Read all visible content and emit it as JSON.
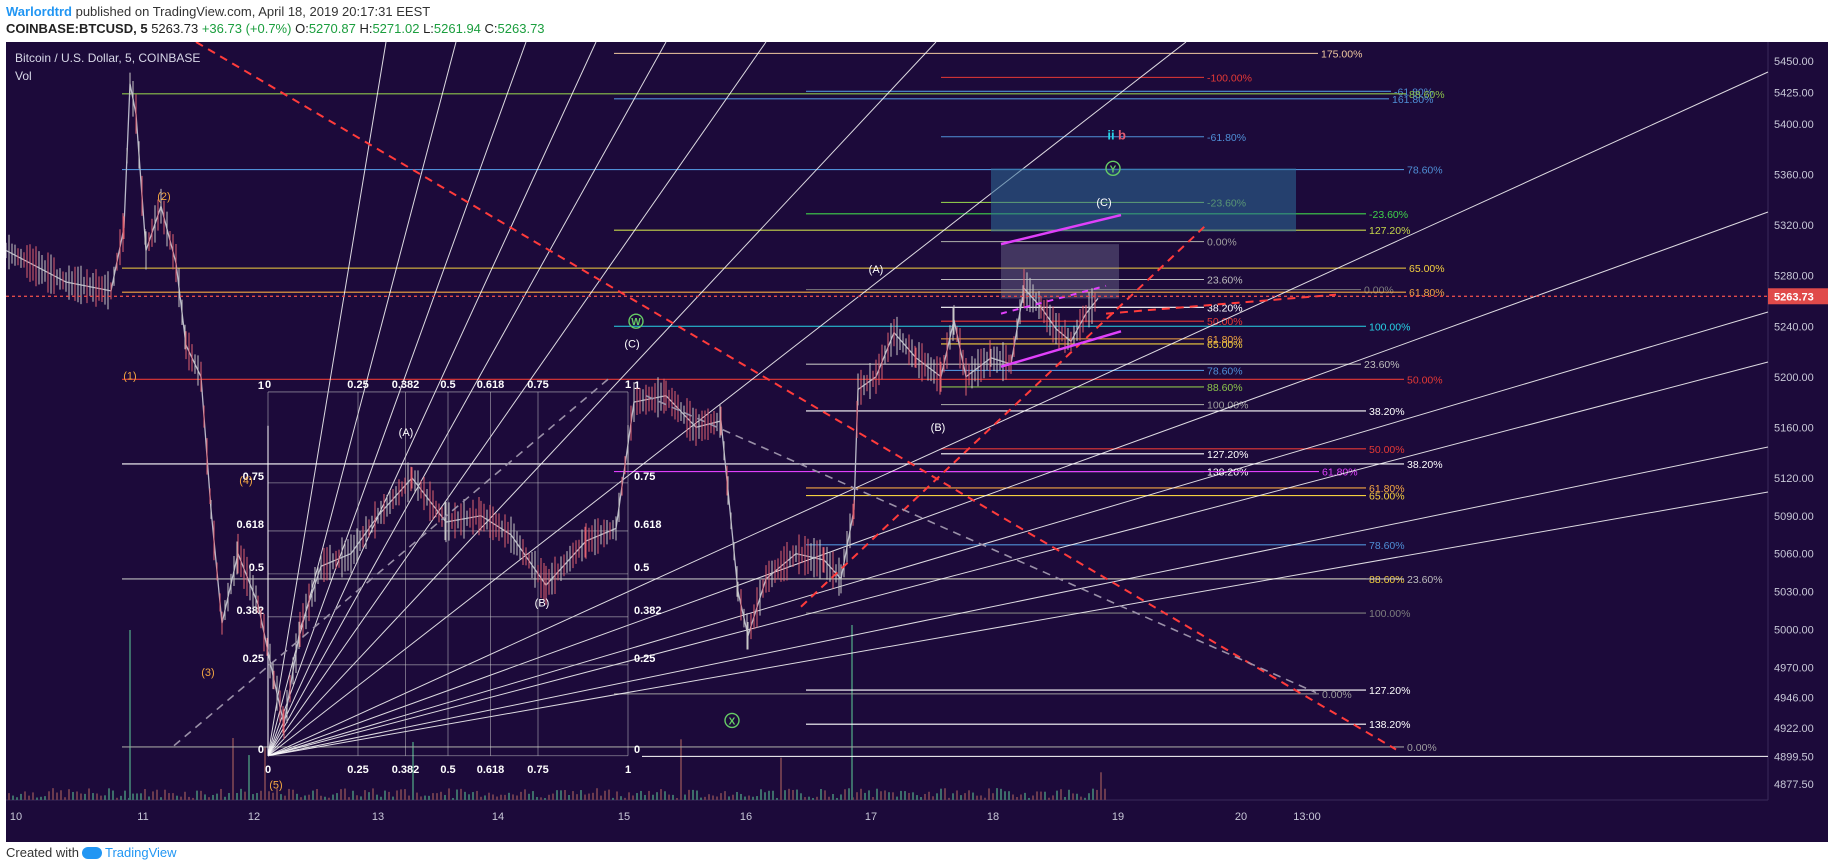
{
  "header": {
    "author": "Warlordtrd",
    "published": "published on TradingView.com, April 18, 2019 20:17:31 EEST",
    "symbol": "COINBASE:BTCUSD, 5",
    "last": "5263.73",
    "change": "+36.73 (+0.7%)",
    "o_label": "O:",
    "o_value": "5270.87",
    "h_label": "H:",
    "h_value": "5271.02",
    "l_label": "L:",
    "l_value": "5261.94",
    "c_label": "C:",
    "c_value": "5263.73"
  },
  "chart": {
    "title": "Bitcoin / U.S. Dollar, 5, COINBASE",
    "volume_label": "Vol",
    "last_price_label": "5263.73"
  },
  "footer": {
    "created_with": "Created with",
    "brand": "TradingView"
  },
  "colors": {
    "background": "#1c0a3a",
    "candle_up": "#c7c7c7",
    "candle_down": "#e06270",
    "last_price": "#e04a4a",
    "fan_lines": "#ffffff",
    "fib_white": "#ffffff",
    "fib_red": "#e53935",
    "fib_blue": "#4f8fd6",
    "fib_yellow": "#f4d03f",
    "fib_green": "#8bc34a",
    "cyan_level": "#26d3e6",
    "magenta": "#e040fb",
    "box": "#2e6d99",
    "wave_orange": "#f4a742",
    "wave_green": "#66cc66",
    "dashed_red": "#ff3b3b",
    "dashed_gray": "#9a90a8"
  },
  "chart_data": {
    "type": "candlestick",
    "title": "Bitcoin / U.S. Dollar, 5, COINBASE",
    "x_ticks": [
      "10",
      "11",
      "12",
      "13",
      "14",
      "15",
      "16",
      "17",
      "18",
      "19",
      "20",
      "13:00"
    ],
    "y_ticks": [
      5450.0,
      5425.0,
      5400.0,
      5360.0,
      5320.0,
      5280.0,
      5240.0,
      5200.0,
      5160.0,
      5120.0,
      5090.0,
      5060.0,
      5030.0,
      5000.0,
      4970.0,
      4946.0,
      4922.0,
      4899.5,
      4877.5
    ],
    "ylim": [
      4865,
      5465
    ],
    "last_price": 5263.73,
    "price_path": [
      {
        "x": 0,
        "y": 5300
      },
      {
        "x": 60,
        "y": 5275
      },
      {
        "x": 105,
        "y": 5268
      },
      {
        "x": 118,
        "y": 5318
      },
      {
        "x": 124,
        "y": 5432
      },
      {
        "x": 130,
        "y": 5408
      },
      {
        "x": 140,
        "y": 5300
      },
      {
        "x": 155,
        "y": 5335
      },
      {
        "x": 170,
        "y": 5290
      },
      {
        "x": 180,
        "y": 5225
      },
      {
        "x": 195,
        "y": 5200
      },
      {
        "x": 205,
        "y": 5095
      },
      {
        "x": 216,
        "y": 5005
      },
      {
        "x": 232,
        "y": 5060
      },
      {
        "x": 252,
        "y": 5020
      },
      {
        "x": 268,
        "y": 4960
      },
      {
        "x": 278,
        "y": 4925
      },
      {
        "x": 294,
        "y": 5000
      },
      {
        "x": 315,
        "y": 5050
      },
      {
        "x": 345,
        "y": 5060
      },
      {
        "x": 372,
        "y": 5090
      },
      {
        "x": 406,
        "y": 5120
      },
      {
        "x": 440,
        "y": 5085
      },
      {
        "x": 475,
        "y": 5090
      },
      {
        "x": 505,
        "y": 5075
      },
      {
        "x": 540,
        "y": 5035
      },
      {
        "x": 580,
        "y": 5070
      },
      {
        "x": 610,
        "y": 5080
      },
      {
        "x": 628,
        "y": 5180
      },
      {
        "x": 660,
        "y": 5185
      },
      {
        "x": 690,
        "y": 5160
      },
      {
        "x": 715,
        "y": 5165
      },
      {
        "x": 722,
        "y": 5110
      },
      {
        "x": 732,
        "y": 5030
      },
      {
        "x": 742,
        "y": 4995
      },
      {
        "x": 760,
        "y": 5040
      },
      {
        "x": 790,
        "y": 5060
      },
      {
        "x": 818,
        "y": 5055
      },
      {
        "x": 835,
        "y": 5040
      },
      {
        "x": 848,
        "y": 5095
      },
      {
        "x": 852,
        "y": 5190
      },
      {
        "x": 870,
        "y": 5200
      },
      {
        "x": 888,
        "y": 5235
      },
      {
        "x": 910,
        "y": 5215
      },
      {
        "x": 935,
        "y": 5200
      },
      {
        "x": 948,
        "y": 5245
      },
      {
        "x": 960,
        "y": 5200
      },
      {
        "x": 985,
        "y": 5215
      },
      {
        "x": 1005,
        "y": 5210
      },
      {
        "x": 1018,
        "y": 5270
      },
      {
        "x": 1035,
        "y": 5255
      },
      {
        "x": 1050,
        "y": 5238
      },
      {
        "x": 1065,
        "y": 5228
      },
      {
        "x": 1080,
        "y": 5250
      },
      {
        "x": 1092,
        "y": 5262
      }
    ],
    "fib_levels": [
      {
        "label": "175.00%",
        "y": 5456,
        "x1": 608,
        "x2": 1312,
        "color": "#f0c9a0"
      },
      {
        "label": "-100.00%",
        "y": 5437,
        "x1": 935,
        "x2": 1198,
        "color": "#e53935"
      },
      {
        "label": "-61.80%",
        "y": 5426,
        "x1": 800,
        "x2": 1385,
        "color": "#4f8fd6"
      },
      {
        "label": "88.60%",
        "y": 5424,
        "x1": 116,
        "x2": 1400,
        "color": "#8bc34a"
      },
      {
        "label": "161.80%",
        "y": 5420,
        "x1": 608,
        "x2": 1383,
        "color": "#4f8fd6"
      },
      {
        "label": "-61.80%",
        "y": 5390,
        "x1": 935,
        "x2": 1198,
        "color": "#4f8fd6"
      },
      {
        "label": "78.60%",
        "y": 5364,
        "x1": 116,
        "x2": 1398,
        "color": "#4f8fd6"
      },
      {
        "label": "-23.60%",
        "y": 5338,
        "x1": 935,
        "x2": 1198,
        "color": "#8bc34a"
      },
      {
        "label": "-23.60%",
        "y": 5329,
        "x1": 800,
        "x2": 1360,
        "color": "#3fd24a"
      },
      {
        "label": "127.20%",
        "y": 5316,
        "x1": 608,
        "x2": 1360,
        "color": "#c6d64a"
      },
      {
        "label": "0.00%",
        "y": 5307,
        "x1": 935,
        "x2": 1198,
        "color": "#9e9e9e"
      },
      {
        "label": "65.00%",
        "y": 5286,
        "x1": 116,
        "x2": 1400,
        "color": "#f4d03f"
      },
      {
        "label": "23.60%",
        "y": 5277,
        "x1": 935,
        "x2": 1198,
        "color": "#bdbdbd"
      },
      {
        "label": "0.00%",
        "y": 5269,
        "x1": 800,
        "x2": 1355,
        "color": "#7e7e7e"
      },
      {
        "label": "61.80%",
        "y": 5267,
        "x1": 116,
        "x2": 1400,
        "color": "#f4a742"
      },
      {
        "label": "38.20%",
        "y": 5255,
        "x1": 935,
        "x2": 1198,
        "color": "#ffffff"
      },
      {
        "label": "50.00%",
        "y": 5244,
        "x1": 935,
        "x2": 1198,
        "color": "#e53935"
      },
      {
        "label": "100.00%",
        "y": 5240,
        "x1": 608,
        "x2": 1360,
        "color": "#26d3e6"
      },
      {
        "label": "61.80%",
        "y": 5230,
        "x1": 935,
        "x2": 1198,
        "color": "#f4a742"
      },
      {
        "label": "65.00%",
        "y": 5226,
        "x1": 935,
        "x2": 1198,
        "color": "#f4d03f"
      },
      {
        "label": "23.60%",
        "y": 5210,
        "x1": 800,
        "x2": 1355,
        "color": "#bdbdbd"
      },
      {
        "label": "78.60%",
        "y": 5205,
        "x1": 935,
        "x2": 1198,
        "color": "#4f8fd6"
      },
      {
        "label": "50.00%",
        "y": 5198,
        "x1": 116,
        "x2": 1398,
        "color": "#e53935"
      },
      {
        "label": "88.60%",
        "y": 5192,
        "x1": 935,
        "x2": 1198,
        "color": "#8bc34a"
      },
      {
        "label": "100.00%",
        "y": 5178,
        "x1": 935,
        "x2": 1198,
        "color": "#9e9e9e"
      },
      {
        "label": "38.20%",
        "y": 5173,
        "x1": 800,
        "x2": 1360,
        "color": "#ffffff"
      },
      {
        "label": "50.00%",
        "y": 5143,
        "x1": 935,
        "x2": 1360,
        "color": "#e53935"
      },
      {
        "label": "127.20%",
        "y": 5139,
        "x1": 935,
        "x2": 1198,
        "color": "#ffffff"
      },
      {
        "label": "38.20%",
        "y": 5131,
        "x1": 116,
        "x2": 1398,
        "color": "#ffffff"
      },
      {
        "label": "138.20%",
        "y": 5125,
        "x1": 935,
        "x2": 1198,
        "color": "#ffffff"
      },
      {
        "label": "61.80%",
        "y": 5125,
        "x1": 608,
        "x2": 1313,
        "color": "#e040fb"
      },
      {
        "label": "61.80%",
        "y": 5112,
        "x1": 800,
        "x2": 1360,
        "color": "#f4a742"
      },
      {
        "label": "65.00%",
        "y": 5106,
        "x1": 800,
        "x2": 1360,
        "color": "#f4d03f"
      },
      {
        "label": "78.60%",
        "y": 5067,
        "x1": 800,
        "x2": 1360,
        "color": "#4f8fd6"
      },
      {
        "label": "88.60%",
        "y": 5040,
        "x1": 800,
        "x2": 1360,
        "color": "#f4d03f"
      },
      {
        "label": "23.60%",
        "y": 5040,
        "x1": 116,
        "x2": 1398,
        "color": "#bdbdbd"
      },
      {
        "label": "100.00%",
        "y": 5013,
        "x1": 800,
        "x2": 1360,
        "color": "#7e7e7e"
      },
      {
        "label": "127.20%",
        "y": 4952,
        "x1": 800,
        "x2": 1360,
        "color": "#ffffff"
      },
      {
        "label": "0.00%",
        "y": 4949,
        "x1": 608,
        "x2": 1313,
        "color": "#9e9e9e"
      },
      {
        "label": "138.20%",
        "y": 4925,
        "x1": 800,
        "x2": 1360,
        "color": "#ffffff"
      },
      {
        "label": "0.00%",
        "y": 4907,
        "x1": 116,
        "x2": 1398,
        "color": "#9e9e9e"
      }
    ],
    "fib_box_a": {
      "top_labels": [
        "0",
        "0.25",
        "0.382",
        "0.5",
        "0.618",
        "0.75",
        "1"
      ],
      "left_labels": [
        "1",
        "0.75",
        "0.618",
        "0.5",
        "0.382",
        "0.25",
        "0"
      ],
      "bottom_labels": [
        "0",
        "0.25",
        "0.382",
        "0.5",
        "0.618",
        "0.75",
        "1"
      ]
    },
    "fib_box_b": {
      "labels": [
        "1",
        "0.75",
        "0.618",
        "0.5",
        "0.382",
        "0.25",
        "0"
      ]
    },
    "wave_labels_orange": [
      "(1)",
      "(2)",
      "(3)",
      "(4)",
      "(5)"
    ],
    "wave_labels_white": [
      "(A)",
      "(B)",
      "(C)",
      "(A)",
      "(B)",
      "(C)",
      "(C)"
    ],
    "wave_labels_circled": [
      "W",
      "X",
      "Y"
    ],
    "wave_label_b": "b",
    "wave_label_ii": "ii"
  }
}
